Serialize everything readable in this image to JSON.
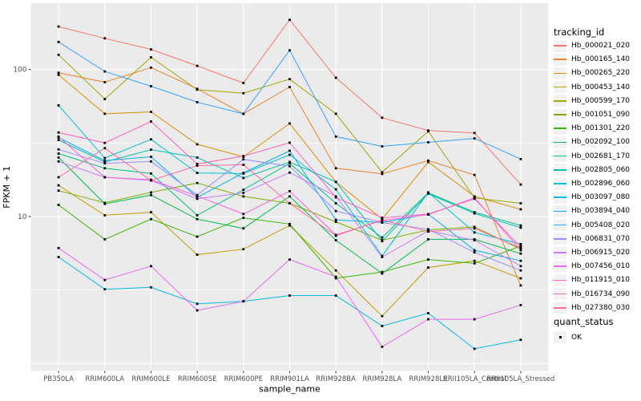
{
  "chart_data": {
    "type": "line",
    "title": "",
    "xlabel": "sample_name",
    "ylabel": "FPKM + 1",
    "y_scale": "log10",
    "y_ticks": [
      10,
      100
    ],
    "y_tick_labels": [
      "10",
      "100"
    ],
    "y_minor_gridlines": [
      3.162,
      31.62
    ],
    "y_major_gridlines": [
      1,
      10,
      100
    ],
    "ylim": [
      0.9,
      283
    ],
    "grid": "on",
    "panel_bg": "#EBEBEB",
    "grid_color": "#FFFFFF",
    "axis_text_color": "#4D4D4D",
    "marker": "black-square",
    "legend_position": "right",
    "legend_title": "tracking_id",
    "quant_legend_title": "quant_status",
    "quant_legend_value": "OK",
    "categories": [
      "PB350LA",
      "RRIM600LA",
      "RRIM600LE",
      "RRIM600SE",
      "RRIM600PE",
      "RRIM901LA",
      "RRIM928BA",
      "RRIM928LA",
      "RRIM928LE",
      "RRII105LA_Control",
      "RRII105LA_Stressed"
    ],
    "series": [
      {
        "name": "Hb_000021_020",
        "color": "#F8766D",
        "values": [
          196,
          163,
          137,
          106,
          81,
          218,
          88,
          47,
          38.5,
          37,
          16.5
        ]
      },
      {
        "name": "Hb_000165_140",
        "color": "#EA8331",
        "values": [
          95,
          82,
          103,
          74,
          50,
          76,
          21.3,
          19.5,
          24,
          19.2,
          3.4
        ]
      },
      {
        "name": "Hb_000265_220",
        "color": "#D89000",
        "values": [
          92,
          50,
          51.5,
          31,
          25.5,
          43,
          17.2,
          9.6,
          23.5,
          13.7,
          11.2
        ]
      },
      {
        "name": "Hb_000453_140",
        "color": "#C09B00",
        "values": [
          16.3,
          10.2,
          10.7,
          5.5,
          6.0,
          8.7,
          4.3,
          2.1,
          4.5,
          5.0,
          3.8
        ]
      },
      {
        "name": "Hb_000599_170",
        "color": "#A3A500",
        "values": [
          126,
          63,
          121,
          73,
          69,
          86,
          50,
          20,
          38,
          13.4,
          12.3
        ]
      },
      {
        "name": "Hb_001051_090",
        "color": "#7CAE00",
        "values": [
          15,
          12.4,
          14.6,
          16.9,
          13.7,
          12.3,
          9.2,
          6.9,
          8.1,
          8.5,
          6.0
        ]
      },
      {
        "name": "Hb_001301_220",
        "color": "#39B600",
        "values": [
          12,
          7.0,
          9.6,
          7.3,
          9.8,
          8.9,
          3.8,
          4.2,
          5.1,
          4.8,
          6.3
        ]
      },
      {
        "name": "Hb_002092_100",
        "color": "#00BB4E",
        "values": [
          25.2,
          12.2,
          14.0,
          9.6,
          8.3,
          13.7,
          6.9,
          4.1,
          7.0,
          7.0,
          5.6
        ]
      },
      {
        "name": "Hb_002681_170",
        "color": "#00C087",
        "values": [
          26.8,
          21.3,
          19.6,
          10.2,
          15.2,
          23,
          12.3,
          7.2,
          14.5,
          10.7,
          8.7
        ]
      },
      {
        "name": "Hb_002805_060",
        "color": "#00C0B2",
        "values": [
          33.2,
          23.5,
          28.5,
          25.2,
          18.3,
          23.5,
          17.2,
          6.8,
          14.3,
          10.5,
          8.4
        ]
      },
      {
        "name": "Hb_002896_060",
        "color": "#00BFD3",
        "values": [
          57,
          25,
          33.5,
          19.8,
          19.6,
          26.3,
          15.3,
          5.4,
          14.6,
          7.8,
          6.5
        ]
      },
      {
        "name": "Hb_003097_080",
        "color": "#00BAE5",
        "values": [
          5.3,
          3.2,
          3.3,
          2.55,
          2.65,
          2.9,
          2.9,
          1.8,
          2.2,
          1.26,
          1.45
        ]
      },
      {
        "name": "Hb_003894_040",
        "color": "#00AEEE",
        "values": [
          34.5,
          24,
          25.5,
          13.5,
          19.8,
          28,
          9.5,
          9.1,
          10.4,
          5.9,
          5.0
        ]
      },
      {
        "name": "Hb_005408_020",
        "color": "#35A2FF",
        "values": [
          154,
          97,
          77,
          60,
          50,
          135,
          35,
          30,
          32,
          34,
          24.6
        ]
      },
      {
        "name": "Hb_006831_070",
        "color": "#9590FF",
        "values": [
          28.6,
          23,
          23.7,
          14.0,
          24.5,
          22,
          10.9,
          9.1,
          8.2,
          5.7,
          4.3
        ]
      },
      {
        "name": "Hb_006915_020",
        "color": "#C77CFF",
        "values": [
          23.7,
          18.5,
          17.6,
          13.2,
          14.5,
          19.9,
          13.7,
          5.3,
          8.0,
          6.9,
          4.6
        ]
      },
      {
        "name": "Hb_007456_010",
        "color": "#E76BF3",
        "values": [
          6.1,
          3.7,
          4.6,
          2.3,
          2.65,
          5.1,
          3.9,
          1.3,
          2.0,
          2.0,
          2.5
        ]
      },
      {
        "name": "Hb_011915_010",
        "color": "#FA62DB",
        "values": [
          35,
          18.5,
          17.8,
          13.8,
          10.4,
          14.9,
          7.5,
          9.4,
          10.3,
          13.4,
          5.9
        ]
      },
      {
        "name": "Hb_016734_090",
        "color": "#FF61BB",
        "values": [
          37.3,
          31.7,
          44.3,
          22.8,
          25.8,
          31.8,
          13.5,
          9.8,
          10.4,
          13.2,
          6.2
        ]
      },
      {
        "name": "Hb_027380_030",
        "color": "#FF6A98",
        "values": [
          18.5,
          29.2,
          17.6,
          22.2,
          22.5,
          12.3,
          7.4,
          9.5,
          7.9,
          8.3,
          6.1
        ]
      }
    ]
  }
}
